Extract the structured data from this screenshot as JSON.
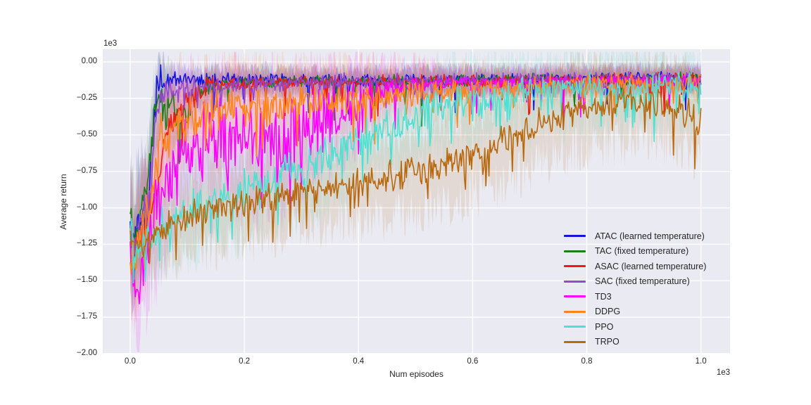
{
  "chart_data": {
    "type": "line",
    "title": "",
    "xlabel": "Num episodes",
    "ylabel": "Average return",
    "x_offset_label": "1e3",
    "y_offset_label": "1e3",
    "unit_scale": 1000,
    "xlim": [
      -0.048,
      1.051
    ],
    "ylim": [
      -2.0,
      0.087
    ],
    "grid": true,
    "legend_position": "lower right",
    "colors": {
      "axes_background": "#eaeaf2",
      "grid": "#ffffff",
      "figure_background": "#ffffff",
      "text": "#262626"
    },
    "xticks": {
      "values": [
        0.0,
        0.2,
        0.4,
        0.6,
        0.8,
        1.0
      ],
      "labels": [
        "0.0",
        "0.2",
        "0.4",
        "0.6",
        "0.8",
        "1.0"
      ]
    },
    "yticks": {
      "values": [
        0.0,
        -0.25,
        -0.5,
        -0.75,
        -1.0,
        -1.25,
        -1.5,
        -1.75,
        -2.0
      ],
      "labels": [
        "0.00",
        "−0.25",
        "−0.50",
        "−0.75",
        "−1.00",
        "−1.25",
        "−1.50",
        "−1.75",
        "−2.00"
      ]
    },
    "series": [
      {
        "name": "ATAC (learned temperature)",
        "slug": "atac",
        "color": "#1414e0",
        "seed": 11,
        "mean": [
          [
            0,
            -1.1
          ],
          [
            0.006,
            -1.44
          ],
          [
            0.012,
            -1.05
          ],
          [
            0.02,
            -1.02
          ],
          [
            0.03,
            -1.0
          ],
          [
            0.038,
            -0.6
          ],
          [
            0.045,
            -0.25
          ],
          [
            0.055,
            -0.14
          ],
          [
            0.08,
            -0.12
          ],
          [
            0.2,
            -0.12
          ],
          [
            0.45,
            -0.13
          ],
          [
            0.7,
            -0.12
          ],
          [
            1,
            -0.1
          ]
        ],
        "amp": [
          [
            0,
            0.18
          ],
          [
            0.03,
            0.2
          ],
          [
            0.05,
            0.18
          ],
          [
            0.07,
            0.06
          ],
          [
            0.15,
            0.05
          ],
          [
            1,
            0.045
          ]
        ],
        "band": [
          [
            0,
            0.4
          ],
          [
            0.03,
            0.35
          ],
          [
            0.07,
            0.1
          ],
          [
            0.2,
            0.09
          ],
          [
            1,
            0.08
          ]
        ],
        "spike": [
          0.03,
          0.18
        ]
      },
      {
        "name": "TAC (fixed temperature)",
        "slug": "tac",
        "color": "#1a7d1a",
        "seed": 22,
        "mean": [
          [
            0,
            -1.02
          ],
          [
            0.008,
            -1.2
          ],
          [
            0.018,
            -0.95
          ],
          [
            0.03,
            -0.9
          ],
          [
            0.04,
            -0.4
          ],
          [
            0.05,
            -0.28
          ],
          [
            0.07,
            -0.3
          ],
          [
            0.09,
            -0.45
          ],
          [
            0.11,
            -0.25
          ],
          [
            0.14,
            -0.16
          ],
          [
            0.2,
            -0.14
          ],
          [
            0.5,
            -0.13
          ],
          [
            1,
            -0.11
          ]
        ],
        "amp": [
          [
            0,
            0.16
          ],
          [
            0.04,
            0.18
          ],
          [
            0.09,
            0.15
          ],
          [
            0.13,
            0.08
          ],
          [
            0.2,
            0.05
          ],
          [
            1,
            0.045
          ]
        ],
        "band": [
          [
            0,
            0.38
          ],
          [
            0.05,
            0.3
          ],
          [
            0.12,
            0.12
          ],
          [
            0.3,
            0.09
          ],
          [
            1,
            0.08
          ]
        ],
        "spike": [
          0.035,
          0.2
        ]
      },
      {
        "name": "ASAC (learned temperature)",
        "slug": "asac",
        "color": "#f01b10",
        "seed": 33,
        "mean": [
          [
            0,
            -1.18
          ],
          [
            0.008,
            -1.35
          ],
          [
            0.02,
            -1.15
          ],
          [
            0.04,
            -1.0
          ],
          [
            0.055,
            -0.6
          ],
          [
            0.07,
            -0.4
          ],
          [
            0.09,
            -0.35
          ],
          [
            0.11,
            -0.25
          ],
          [
            0.14,
            -0.17
          ],
          [
            0.25,
            -0.14
          ],
          [
            0.6,
            -0.13
          ],
          [
            1,
            -0.11
          ]
        ],
        "amp": [
          [
            0,
            0.18
          ],
          [
            0.05,
            0.17
          ],
          [
            0.1,
            0.13
          ],
          [
            0.15,
            0.07
          ],
          [
            0.25,
            0.05
          ],
          [
            1,
            0.05
          ]
        ],
        "band": [
          [
            0,
            0.4
          ],
          [
            0.05,
            0.3
          ],
          [
            0.12,
            0.13
          ],
          [
            0.3,
            0.09
          ],
          [
            1,
            0.08
          ]
        ],
        "spike": [
          0.04,
          0.18
        ]
      },
      {
        "name": "SAC (fixed temperature)",
        "slug": "sac",
        "color": "#9747cf",
        "seed": 44,
        "mean": [
          [
            0,
            -1.12
          ],
          [
            0.008,
            -1.3
          ],
          [
            0.02,
            -1.05
          ],
          [
            0.035,
            -0.95
          ],
          [
            0.045,
            -0.35
          ],
          [
            0.06,
            -0.2
          ],
          [
            0.1,
            -0.18
          ],
          [
            0.2,
            -0.15
          ],
          [
            0.5,
            -0.13
          ],
          [
            1,
            -0.12
          ]
        ],
        "amp": [
          [
            0,
            0.2
          ],
          [
            0.04,
            0.15
          ],
          [
            0.06,
            0.1
          ],
          [
            0.12,
            0.07
          ],
          [
            1,
            0.06
          ]
        ],
        "band": [
          [
            0,
            0.4
          ],
          [
            0.04,
            0.3
          ],
          [
            0.08,
            0.12
          ],
          [
            0.3,
            0.1
          ],
          [
            1,
            0.09
          ]
        ],
        "spike": [
          0.05,
          0.13
        ]
      },
      {
        "name": "TD3",
        "slug": "td3",
        "color": "#ff00ff",
        "seed": 55,
        "mean": [
          [
            0,
            -1.3
          ],
          [
            0.006,
            -1.5
          ],
          [
            0.013,
            -1.72
          ],
          [
            0.02,
            -1.45
          ],
          [
            0.035,
            -1.15
          ],
          [
            0.05,
            -0.95
          ],
          [
            0.07,
            -0.75
          ],
          [
            0.1,
            -0.6
          ],
          [
            0.14,
            -0.52
          ],
          [
            0.2,
            -0.5
          ],
          [
            0.26,
            -0.55
          ],
          [
            0.32,
            -0.45
          ],
          [
            0.38,
            -0.3
          ],
          [
            0.43,
            -0.2
          ],
          [
            0.5,
            -0.16
          ],
          [
            0.6,
            -0.14
          ],
          [
            0.8,
            -0.13
          ],
          [
            1,
            -0.12
          ]
        ],
        "amp": [
          [
            0,
            0.22
          ],
          [
            0.02,
            0.25
          ],
          [
            0.05,
            0.3
          ],
          [
            0.1,
            0.32
          ],
          [
            0.2,
            0.32
          ],
          [
            0.3,
            0.3
          ],
          [
            0.38,
            0.22
          ],
          [
            0.45,
            0.1
          ],
          [
            0.55,
            0.05
          ],
          [
            1,
            0.045
          ]
        ],
        "band": [
          [
            0,
            0.4
          ],
          [
            0.05,
            0.5
          ],
          [
            0.15,
            0.5
          ],
          [
            0.3,
            0.45
          ],
          [
            0.45,
            0.2
          ],
          [
            0.6,
            0.1
          ],
          [
            1,
            0.09
          ]
        ],
        "spike": [
          0.05,
          0.25
        ]
      },
      {
        "name": "DDPG",
        "slug": "ddpg",
        "color": "#ff8519",
        "seed": 66,
        "mean": [
          [
            0,
            -1.22
          ],
          [
            0.008,
            -1.35
          ],
          [
            0.02,
            -1.15
          ],
          [
            0.035,
            -0.9
          ],
          [
            0.05,
            -0.55
          ],
          [
            0.07,
            -0.45
          ],
          [
            0.1,
            -0.38
          ],
          [
            0.15,
            -0.33
          ],
          [
            0.25,
            -0.3
          ],
          [
            0.35,
            -0.27
          ],
          [
            0.45,
            -0.24
          ],
          [
            0.55,
            -0.2
          ],
          [
            0.65,
            -0.17
          ],
          [
            0.8,
            -0.15
          ],
          [
            1,
            -0.14
          ]
        ],
        "amp": [
          [
            0,
            0.18
          ],
          [
            0.04,
            0.2
          ],
          [
            0.1,
            0.17
          ],
          [
            0.2,
            0.15
          ],
          [
            0.35,
            0.13
          ],
          [
            0.5,
            0.11
          ],
          [
            0.65,
            0.08
          ],
          [
            1,
            0.07
          ]
        ],
        "band": [
          [
            0,
            0.4
          ],
          [
            0.1,
            0.35
          ],
          [
            0.3,
            0.3
          ],
          [
            0.5,
            0.2
          ],
          [
            0.7,
            0.13
          ],
          [
            1,
            0.1
          ]
        ],
        "spike": [
          0.06,
          0.2
        ]
      },
      {
        "name": "PPO",
        "slug": "ppo",
        "color": "#4fe0d0",
        "seed": 77,
        "mean": [
          [
            0,
            -1.15
          ],
          [
            0.01,
            -1.28
          ],
          [
            0.03,
            -1.2
          ],
          [
            0.06,
            -1.1
          ],
          [
            0.1,
            -1.02
          ],
          [
            0.15,
            -0.95
          ],
          [
            0.2,
            -0.87
          ],
          [
            0.25,
            -0.8
          ],
          [
            0.3,
            -0.73
          ],
          [
            0.35,
            -0.63
          ],
          [
            0.4,
            -0.54
          ],
          [
            0.45,
            -0.46
          ],
          [
            0.5,
            -0.38
          ],
          [
            0.55,
            -0.31
          ],
          [
            0.6,
            -0.26
          ],
          [
            0.65,
            -0.23
          ],
          [
            0.7,
            -0.2
          ],
          [
            0.8,
            -0.18
          ],
          [
            0.9,
            -0.17
          ],
          [
            1,
            -0.17
          ]
        ],
        "amp": [
          [
            0,
            0.14
          ],
          [
            0.1,
            0.15
          ],
          [
            0.3,
            0.16
          ],
          [
            0.5,
            0.15
          ],
          [
            0.7,
            0.13
          ],
          [
            1,
            0.12
          ]
        ],
        "band": [
          [
            0,
            0.3
          ],
          [
            0.2,
            0.35
          ],
          [
            0.4,
            0.35
          ],
          [
            0.6,
            0.3
          ],
          [
            0.8,
            0.28
          ],
          [
            1,
            0.26
          ]
        ],
        "spike": [
          0.09,
          0.22
        ]
      },
      {
        "name": "TRPO",
        "slug": "trpo",
        "color": "#b8690f",
        "seed": 88,
        "mean": [
          [
            0,
            -1.22
          ],
          [
            0.015,
            -1.28
          ],
          [
            0.04,
            -1.18
          ],
          [
            0.08,
            -1.1
          ],
          [
            0.12,
            -1.03
          ],
          [
            0.16,
            -1.0
          ],
          [
            0.2,
            -0.97
          ],
          [
            0.25,
            -0.93
          ],
          [
            0.3,
            -0.88
          ],
          [
            0.35,
            -0.85
          ],
          [
            0.4,
            -0.82
          ],
          [
            0.45,
            -0.79
          ],
          [
            0.5,
            -0.75
          ],
          [
            0.55,
            -0.7
          ],
          [
            0.6,
            -0.63
          ],
          [
            0.65,
            -0.55
          ],
          [
            0.7,
            -0.46
          ],
          [
            0.74,
            -0.38
          ],
          [
            0.78,
            -0.32
          ],
          [
            0.83,
            -0.29
          ],
          [
            0.88,
            -0.27
          ],
          [
            0.93,
            -0.28
          ],
          [
            0.97,
            -0.33
          ],
          [
            1,
            -0.42
          ]
        ],
        "amp": [
          [
            0,
            0.12
          ],
          [
            0.2,
            0.12
          ],
          [
            0.5,
            0.12
          ],
          [
            0.8,
            0.12
          ],
          [
            1,
            0.14
          ]
        ],
        "band": [
          [
            0,
            0.3
          ],
          [
            0.3,
            0.3
          ],
          [
            0.6,
            0.32
          ],
          [
            1,
            0.3
          ]
        ],
        "spike": [
          0.07,
          0.22
        ]
      }
    ]
  }
}
